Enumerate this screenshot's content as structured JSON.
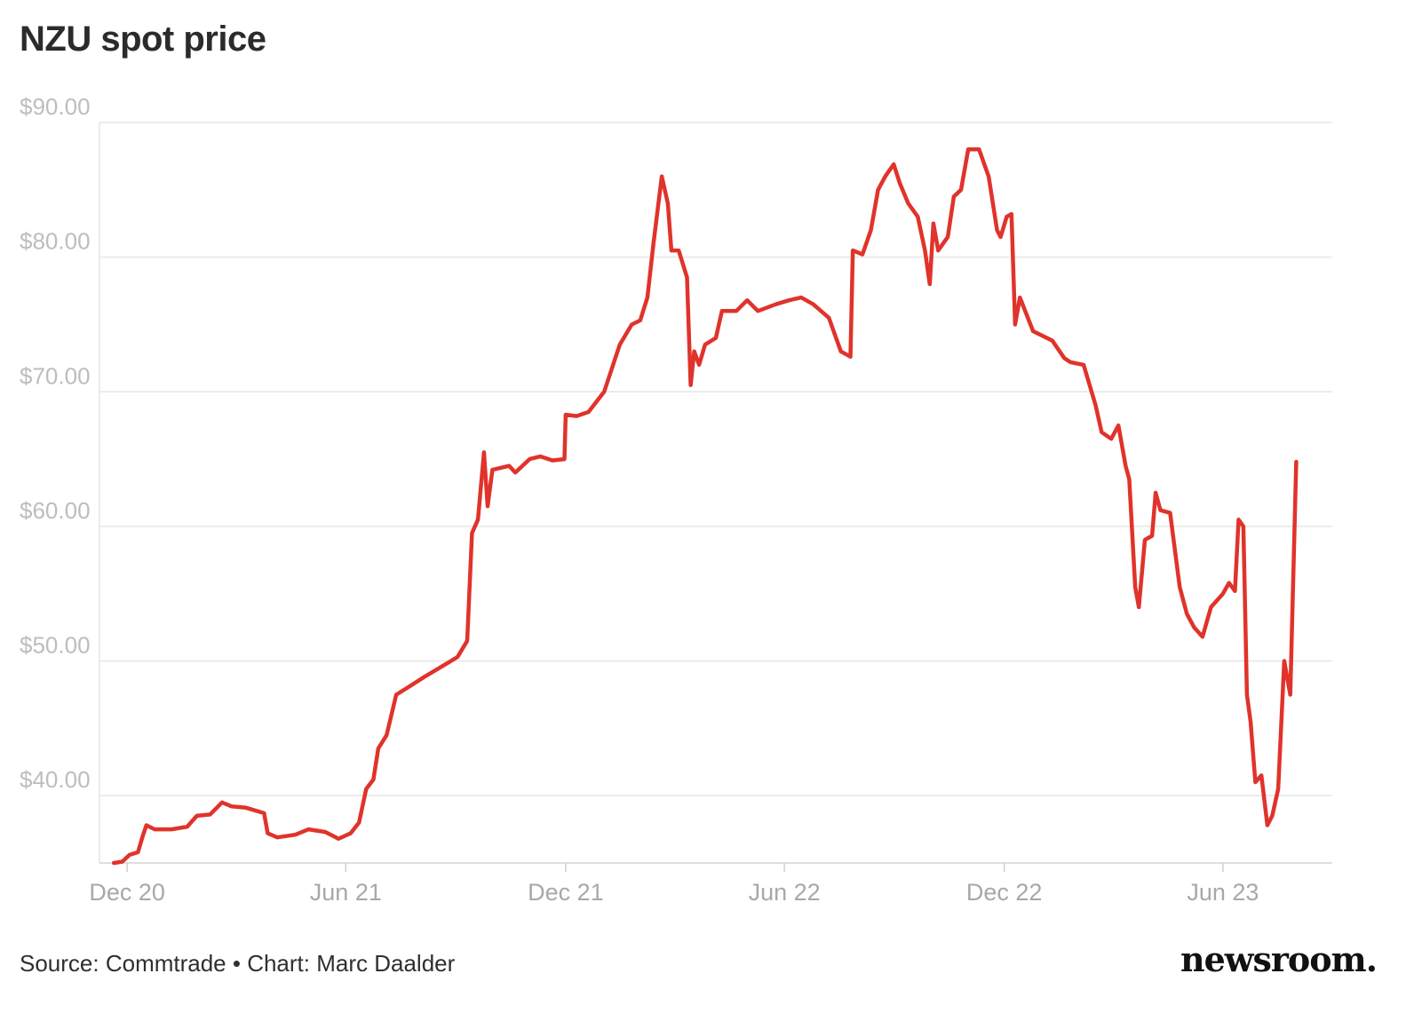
{
  "header": {
    "title": "NZU spot price"
  },
  "footer": {
    "source": "Source: Commtrade • Chart: Marc Daalder",
    "logo": "newsroom."
  },
  "colors": {
    "line": "#e0332b",
    "grid": "#e6e6e6",
    "tick": "#bdbdbd"
  },
  "chart_data": {
    "type": "line",
    "title": "NZU spot price",
    "xlabel": "",
    "ylabel": "",
    "ylim": [
      35.0,
      90.0
    ],
    "xlim": [
      "2020-11-08",
      "2023-08-31"
    ],
    "yticks": [
      {
        "value": 40,
        "label": "$40.00"
      },
      {
        "value": 50,
        "label": "$50.00"
      },
      {
        "value": 60,
        "label": "$60.00"
      },
      {
        "value": 70,
        "label": "$70.00"
      },
      {
        "value": 80,
        "label": "$80.00"
      },
      {
        "value": 90,
        "label": "$90.00"
      }
    ],
    "xticks": [
      {
        "date": "2020-12-01",
        "label": "Dec 20"
      },
      {
        "date": "2021-06-01",
        "label": "Jun 21"
      },
      {
        "date": "2021-12-01",
        "label": "Dec 21"
      },
      {
        "date": "2022-06-01",
        "label": "Jun 22"
      },
      {
        "date": "2022-12-01",
        "label": "Dec 22"
      },
      {
        "date": "2023-06-01",
        "label": "Jun 23"
      }
    ],
    "grid": true,
    "series": [
      {
        "points": [
          [
            "2020-11-20",
            35.0
          ],
          [
            "2020-11-27",
            35.1
          ],
          [
            "2020-12-03",
            35.6
          ],
          [
            "2020-12-10",
            35.8
          ],
          [
            "2020-12-14",
            37.0
          ],
          [
            "2020-12-17",
            37.8
          ],
          [
            "2020-12-24",
            37.5
          ],
          [
            "2021-01-07",
            37.5
          ],
          [
            "2021-01-20",
            37.7
          ],
          [
            "2021-01-28",
            38.5
          ],
          [
            "2021-02-08",
            38.6
          ],
          [
            "2021-02-18",
            39.5
          ],
          [
            "2021-02-26",
            39.2
          ],
          [
            "2021-03-10",
            39.1
          ],
          [
            "2021-03-25",
            38.7
          ],
          [
            "2021-03-28",
            37.2
          ],
          [
            "2021-04-05",
            36.9
          ],
          [
            "2021-04-20",
            37.1
          ],
          [
            "2021-05-01",
            37.5
          ],
          [
            "2021-05-15",
            37.3
          ],
          [
            "2021-05-26",
            36.8
          ],
          [
            "2021-06-05",
            37.2
          ],
          [
            "2021-06-12",
            38.0
          ],
          [
            "2021-06-18",
            40.5
          ],
          [
            "2021-06-24",
            41.2
          ],
          [
            "2021-06-28",
            43.5
          ],
          [
            "2021-07-05",
            44.5
          ],
          [
            "2021-07-13",
            47.5
          ],
          [
            "2021-07-22",
            48.0
          ],
          [
            "2021-08-05",
            48.8
          ],
          [
            "2021-08-20",
            49.6
          ],
          [
            "2021-09-02",
            50.3
          ],
          [
            "2021-09-10",
            51.5
          ],
          [
            "2021-09-14",
            59.5
          ],
          [
            "2021-09-19",
            60.5
          ],
          [
            "2021-09-24",
            65.5
          ],
          [
            "2021-09-27",
            61.5
          ],
          [
            "2021-10-01",
            64.2
          ],
          [
            "2021-10-15",
            64.5
          ],
          [
            "2021-10-20",
            64.0
          ],
          [
            "2021-11-01",
            65.0
          ],
          [
            "2021-11-10",
            65.2
          ],
          [
            "2021-11-20",
            64.9
          ],
          [
            "2021-11-30",
            65.0
          ],
          [
            "2021-12-01",
            68.3
          ],
          [
            "2021-12-10",
            68.2
          ],
          [
            "2021-12-20",
            68.5
          ],
          [
            "2022-01-02",
            70.0
          ],
          [
            "2022-01-15",
            73.5
          ],
          [
            "2022-01-25",
            75.0
          ],
          [
            "2022-02-01",
            75.3
          ],
          [
            "2022-02-07",
            77.0
          ],
          [
            "2022-02-12",
            81.0
          ],
          [
            "2022-02-19",
            86.0
          ],
          [
            "2022-02-24",
            84.0
          ],
          [
            "2022-02-27",
            80.5
          ],
          [
            "2022-03-05",
            80.5
          ],
          [
            "2022-03-12",
            78.5
          ],
          [
            "2022-03-15",
            70.5
          ],
          [
            "2022-03-18",
            73.0
          ],
          [
            "2022-03-22",
            72.0
          ],
          [
            "2022-03-27",
            73.5
          ],
          [
            "2022-04-05",
            74.0
          ],
          [
            "2022-04-10",
            76.0
          ],
          [
            "2022-04-22",
            76.0
          ],
          [
            "2022-05-01",
            76.8
          ],
          [
            "2022-05-10",
            76.0
          ],
          [
            "2022-05-25",
            76.5
          ],
          [
            "2022-06-05",
            76.8
          ],
          [
            "2022-06-15",
            77.0
          ],
          [
            "2022-06-25",
            76.5
          ],
          [
            "2022-07-08",
            75.5
          ],
          [
            "2022-07-18",
            73.0
          ],
          [
            "2022-07-26",
            72.6
          ],
          [
            "2022-07-28",
            80.5
          ],
          [
            "2022-08-05",
            80.2
          ],
          [
            "2022-08-12",
            82.0
          ],
          [
            "2022-08-18",
            85.0
          ],
          [
            "2022-08-24",
            86.0
          ],
          [
            "2022-08-31",
            86.9
          ],
          [
            "2022-09-05",
            85.5
          ],
          [
            "2022-09-12",
            84.0
          ],
          [
            "2022-09-20",
            83.0
          ],
          [
            "2022-09-26",
            80.5
          ],
          [
            "2022-09-30",
            78.0
          ],
          [
            "2022-10-03",
            82.5
          ],
          [
            "2022-10-07",
            80.5
          ],
          [
            "2022-10-15",
            81.5
          ],
          [
            "2022-10-20",
            84.5
          ],
          [
            "2022-10-26",
            85.0
          ],
          [
            "2022-11-01",
            88.0
          ],
          [
            "2022-11-10",
            88.0
          ],
          [
            "2022-11-18",
            86.0
          ],
          [
            "2022-11-25",
            82.0
          ],
          [
            "2022-11-28",
            81.5
          ],
          [
            "2022-12-03",
            83.0
          ],
          [
            "2022-12-07",
            83.2
          ],
          [
            "2022-12-10",
            75.0
          ],
          [
            "2022-12-14",
            77.0
          ],
          [
            "2022-12-25",
            74.5
          ],
          [
            "2023-01-10",
            73.8
          ],
          [
            "2023-01-20",
            72.5
          ],
          [
            "2023-01-25",
            72.2
          ],
          [
            "2023-02-05",
            72.0
          ],
          [
            "2023-02-15",
            69.0
          ],
          [
            "2023-02-20",
            67.0
          ],
          [
            "2023-02-28",
            66.5
          ],
          [
            "2023-03-06",
            67.5
          ],
          [
            "2023-03-12",
            64.5
          ],
          [
            "2023-03-15",
            63.5
          ],
          [
            "2023-03-20",
            55.5
          ],
          [
            "2023-03-23",
            54.0
          ],
          [
            "2023-03-28",
            59.0
          ],
          [
            "2023-04-03",
            59.3
          ],
          [
            "2023-04-06",
            62.5
          ],
          [
            "2023-04-10",
            61.2
          ],
          [
            "2023-04-18",
            61.0
          ],
          [
            "2023-04-26",
            55.5
          ],
          [
            "2023-05-02",
            53.5
          ],
          [
            "2023-05-08",
            52.5
          ],
          [
            "2023-05-15",
            51.8
          ],
          [
            "2023-05-22",
            54.0
          ],
          [
            "2023-06-01",
            55.0
          ],
          [
            "2023-06-06",
            55.8
          ],
          [
            "2023-06-11",
            55.2
          ],
          [
            "2023-06-14",
            60.5
          ],
          [
            "2023-06-18",
            60.0
          ],
          [
            "2023-06-21",
            47.5
          ],
          [
            "2023-06-24",
            45.5
          ],
          [
            "2023-06-28",
            41.0
          ],
          [
            "2023-07-03",
            41.5
          ],
          [
            "2023-07-08",
            37.8
          ],
          [
            "2023-07-12",
            38.5
          ],
          [
            "2023-07-17",
            40.5
          ],
          [
            "2023-07-22",
            50.0
          ],
          [
            "2023-07-27",
            47.5
          ],
          [
            "2023-08-01",
            64.8
          ]
        ]
      }
    ]
  }
}
